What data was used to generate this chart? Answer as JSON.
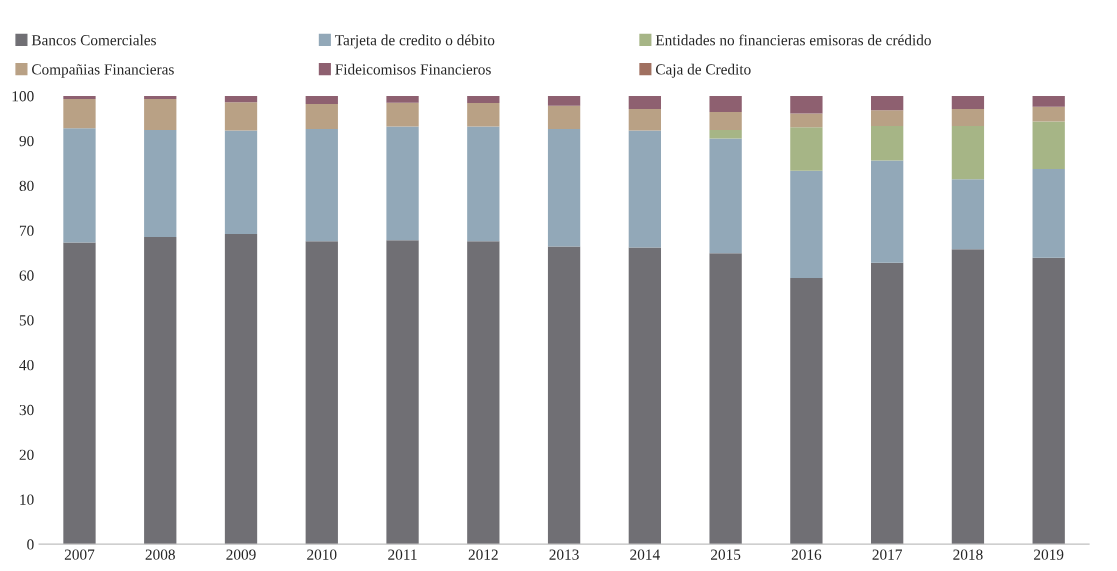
{
  "chart_data": {
    "type": "bar",
    "stacked": true,
    "categories": [
      "2007",
      "2008",
      "2009",
      "2010",
      "2011",
      "2012",
      "2013",
      "2014",
      "2015",
      "2016",
      "2017",
      "2018",
      "2019"
    ],
    "series": [
      {
        "name": "Bancos Comerciales",
        "color": "#706f74",
        "values": [
          67.3,
          68.5,
          69.2,
          67.6,
          67.8,
          67.6,
          66.4,
          66.2,
          64.9,
          59.4,
          62.8,
          65.8,
          63.9
        ]
      },
      {
        "name": "Tarjeta de credito o débito",
        "color": "#92a8b8",
        "values": [
          25.5,
          23.9,
          23.1,
          25.0,
          25.4,
          25.6,
          26.2,
          26.1,
          25.6,
          23.9,
          22.8,
          15.6,
          19.8
        ]
      },
      {
        "name": "Entidades no financieras emisoras de crédido",
        "color": "#a6b586",
        "values": [
          null,
          null,
          null,
          null,
          null,
          null,
          null,
          null,
          1.9,
          9.7,
          7.7,
          11.9,
          10.6
        ]
      },
      {
        "name": "Compañias Financieras",
        "color": "#b9a185",
        "values": [
          6.5,
          6.9,
          6.3,
          5.6,
          5.3,
          5.2,
          5.2,
          4.8,
          4.0,
          3.1,
          3.5,
          3.8,
          3.3
        ]
      },
      {
        "name": "Fideicomisos Financieros",
        "color": "#8e6070",
        "values": [
          0.7,
          0.7,
          1.4,
          1.8,
          1.5,
          1.6,
          2.2,
          2.9,
          3.6,
          3.9,
          3.2,
          2.9,
          2.4
        ]
      },
      {
        "name": "Caja de Credito",
        "color": "#a07060",
        "values": [
          null,
          null,
          null,
          null,
          null,
          null,
          null,
          null,
          null,
          null,
          null,
          null,
          null
        ]
      }
    ],
    "ylim": [
      0,
      100
    ],
    "yticks": [
      0,
      10,
      20,
      30,
      40,
      50,
      60,
      70,
      80,
      90,
      100
    ],
    "grid": false,
    "legend": "top"
  }
}
